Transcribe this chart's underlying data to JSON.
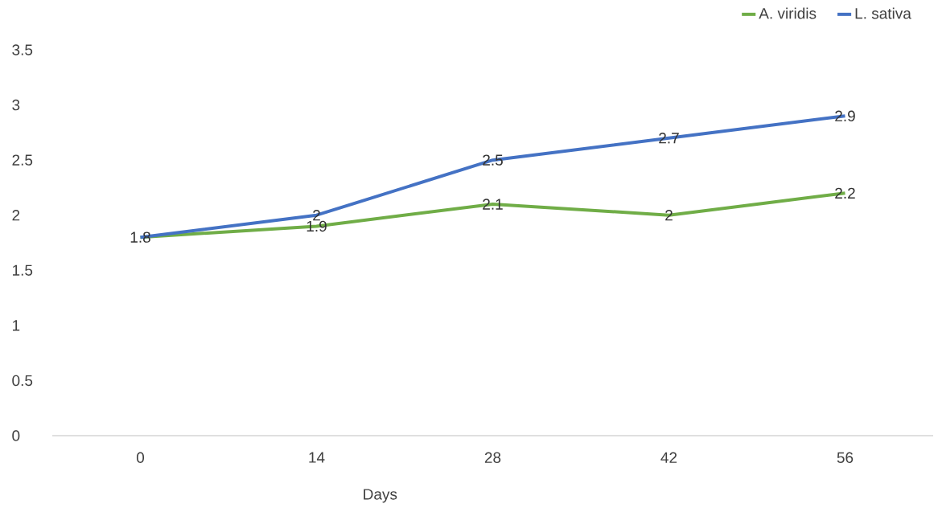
{
  "chart_data": {
    "type": "line",
    "xlabel": "Days",
    "categories": [
      "0",
      "14",
      "28",
      "42",
      "56"
    ],
    "series": [
      {
        "name": "A. viridis",
        "color": "#70ad47",
        "values": [
          1.8,
          1.9,
          2.1,
          2,
          2.2
        ],
        "value_labels": [
          null,
          "1.9",
          "2.1",
          "2",
          "2.2"
        ]
      },
      {
        "name": "L. sativa",
        "color": "#4472c4",
        "values": [
          1.8,
          2,
          2.5,
          2.7,
          2.9
        ],
        "value_labels": [
          "1.8",
          "2",
          "2.5",
          "2.7",
          "2.9"
        ]
      }
    ],
    "ylim": [
      0,
      3.5
    ],
    "yticks": [
      0,
      0.5,
      1,
      1.5,
      2,
      2.5,
      3,
      3.5
    ],
    "legend": "top right",
    "grid": false,
    "marker": "none",
    "line_style": "solid"
  }
}
